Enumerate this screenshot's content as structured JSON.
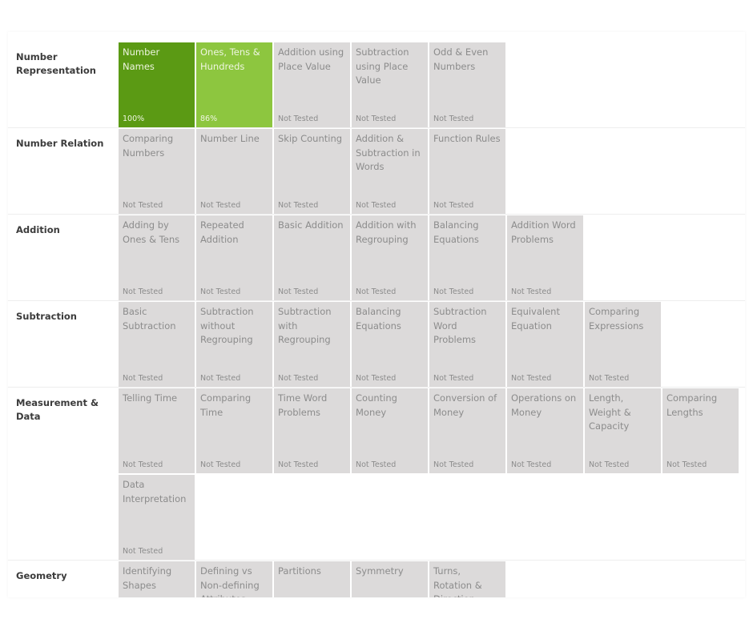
{
  "rows": [
    {
      "label": "Number Representation",
      "tiles": [
        {
          "name": "Number Names",
          "status": "100%",
          "color": "#5b9a14"
        },
        {
          "name": "Ones, Tens & Hundreds",
          "status": "86%",
          "color": "#8dc63f"
        },
        {
          "name": "Addition using Place Value",
          "status": "Not Tested"
        },
        {
          "name": "Subtraction using Place Value",
          "status": "Not Tested"
        },
        {
          "name": "Odd & Even Numbers",
          "status": "Not Tested"
        }
      ]
    },
    {
      "label": "Number Relation",
      "tiles": [
        {
          "name": "Comparing Numbers",
          "status": "Not Tested"
        },
        {
          "name": "Number Line",
          "status": "Not Tested"
        },
        {
          "name": "Skip Counting",
          "status": "Not Tested"
        },
        {
          "name": "Addition & Subtraction in Words",
          "status": "Not Tested"
        },
        {
          "name": "Function Rules",
          "status": "Not Tested"
        }
      ]
    },
    {
      "label": "Addition",
      "tiles": [
        {
          "name": "Adding by Ones & Tens",
          "status": "Not Tested"
        },
        {
          "name": "Repeated Addition",
          "status": "Not Tested"
        },
        {
          "name": "Basic Addition",
          "status": "Not Tested"
        },
        {
          "name": "Addition with Regrouping",
          "status": "Not Tested"
        },
        {
          "name": "Balancing Equations",
          "status": "Not Tested"
        },
        {
          "name": "Addition Word Problems",
          "status": "Not Tested"
        }
      ]
    },
    {
      "label": "Subtraction",
      "tiles": [
        {
          "name": "Basic Subtraction",
          "status": "Not Tested"
        },
        {
          "name": "Subtraction without Regrouping",
          "status": "Not Tested"
        },
        {
          "name": "Subtraction with Regrouping",
          "status": "Not Tested"
        },
        {
          "name": "Balancing Equations",
          "status": "Not Tested"
        },
        {
          "name": "Subtraction Word Problems",
          "status": "Not Tested"
        },
        {
          "name": "Equivalent Equation",
          "status": "Not Tested"
        },
        {
          "name": "Comparing Expressions",
          "status": "Not Tested"
        }
      ]
    },
    {
      "label": "Measurement & Data",
      "tiles": [
        {
          "name": "Telling Time",
          "status": "Not Tested"
        },
        {
          "name": "Comparing Time",
          "status": "Not Tested"
        },
        {
          "name": "Time Word Problems",
          "status": "Not Tested"
        },
        {
          "name": "Counting Money",
          "status": "Not Tested"
        },
        {
          "name": "Conversion of Money",
          "status": "Not Tested"
        },
        {
          "name": "Operations on Money",
          "status": "Not Tested"
        },
        {
          "name": "Length, Weight & Capacity",
          "status": "Not Tested"
        },
        {
          "name": "Comparing Lengths",
          "status": "Not Tested"
        },
        {
          "name": "Data Interpretation",
          "status": "Not Tested"
        }
      ]
    },
    {
      "label": "Geometry",
      "tiles": [
        {
          "name": "Identifying Shapes"
        },
        {
          "name": "Defining vs Non-defining Attributes"
        },
        {
          "name": "Partitions"
        },
        {
          "name": "Symmetry"
        },
        {
          "name": "Turns, Rotation & Direction"
        }
      ]
    }
  ]
}
